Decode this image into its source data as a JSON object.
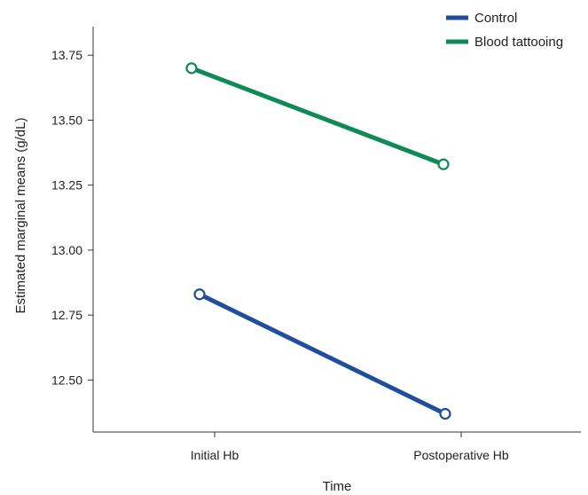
{
  "chart_data": {
    "type": "line",
    "categories": [
      "Initial Hb",
      "Postoperative Hb"
    ],
    "series": [
      {
        "name": "Control",
        "values": [
          12.83,
          12.37
        ],
        "color": "#1f4e9e"
      },
      {
        "name": "Blood tattooing",
        "values": [
          13.7,
          13.33
        ],
        "color": "#0e8a57"
      }
    ],
    "xlabel": "Time",
    "ylabel": "Estimated marginal means (g/dL)",
    "ylim": [
      12.3,
      13.86
    ],
    "yticks": [
      "12.50",
      "12.75",
      "13.00",
      "13.25",
      "13.50",
      "13.75"
    ],
    "grid": false,
    "legend": "top-right"
  }
}
